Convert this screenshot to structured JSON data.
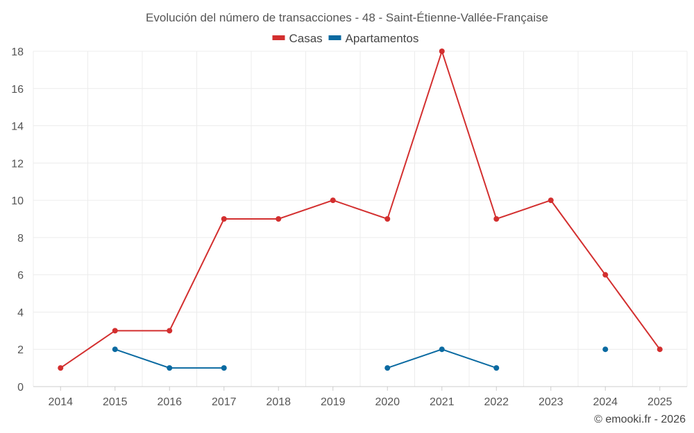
{
  "chart_data": {
    "type": "line",
    "title": "Evolución del número de transacciones - 48 - Saint-Étienne-Vallée-Française",
    "xlabel": "",
    "ylabel": "",
    "categories": [
      "2014",
      "2015",
      "2016",
      "2017",
      "2018",
      "2019",
      "2020",
      "2021",
      "2022",
      "2023",
      "2024",
      "2025"
    ],
    "ylim": [
      0,
      18
    ],
    "yticks": [
      0,
      2,
      4,
      6,
      8,
      10,
      12,
      14,
      16,
      18
    ],
    "grid": true,
    "legend_position": "top-center",
    "series": [
      {
        "name": "Casas",
        "color": "#d32f2f",
        "values": [
          1,
          3,
          3,
          9,
          9,
          10,
          9,
          18,
          9,
          10,
          6,
          2
        ]
      },
      {
        "name": "Apartamentos",
        "color": "#0a6aa1",
        "values": [
          null,
          2,
          1,
          1,
          null,
          null,
          1,
          2,
          1,
          null,
          2,
          null
        ]
      }
    ]
  },
  "credit": "© emooki.fr - 2026"
}
